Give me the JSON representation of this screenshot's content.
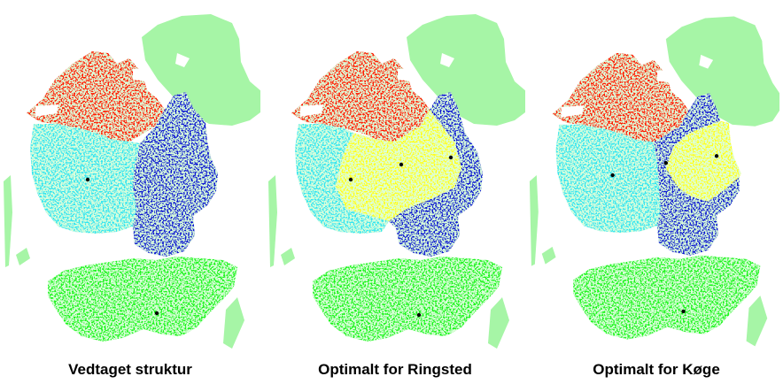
{
  "colors": {
    "light_green": "#a6f5a6",
    "red": "#ff1a00",
    "blue": "#0a14d2",
    "cyan": "#33e6f0",
    "green": "#1ef51e",
    "yellow": "#ffff1a",
    "black": "#000000"
  },
  "panels": [
    {
      "caption": "Vedtaget struktur",
      "variant": "vedtaget"
    },
    {
      "caption": "Optimalt for Ringsted",
      "variant": "ringsted"
    },
    {
      "caption": "Optimalt for Køge",
      "variant": "koege"
    }
  ]
}
